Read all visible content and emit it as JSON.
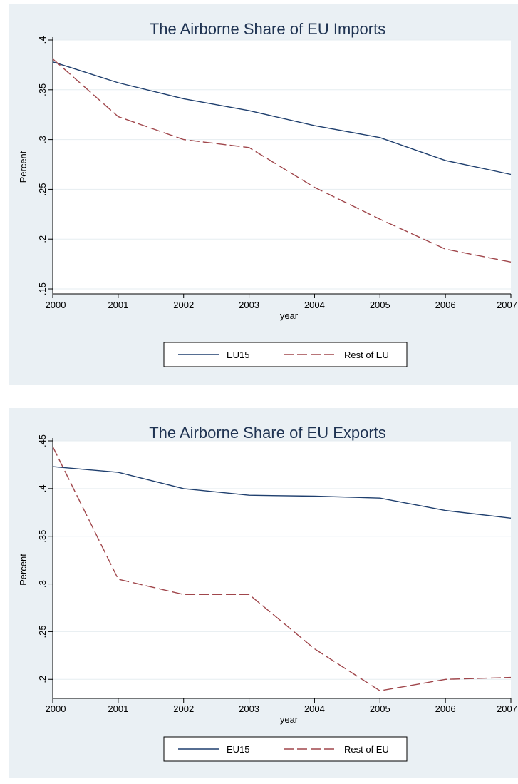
{
  "colors": {
    "panel_bg": "#eaf0f4",
    "plot_bg": "#ffffff",
    "grid": "#e6edf1",
    "title": "#1f3352",
    "eu15": "#1f3f6e",
    "rest_of_eu": "#a0464b"
  },
  "chart_data": [
    {
      "type": "line",
      "title": "The Airborne Share of EU Imports",
      "xlabel": "year",
      "ylabel": "Percent",
      "x": [
        2000,
        2001,
        2002,
        2003,
        2004,
        2005,
        2006,
        2007
      ],
      "xticks": [
        "2000",
        "2001",
        "2002",
        "2003",
        "2004",
        "2005",
        "2006",
        "2007"
      ],
      "yticks": [
        0.15,
        0.2,
        0.25,
        0.3,
        0.35,
        0.4
      ],
      "ytick_labels": [
        ".15",
        ".2",
        ".25",
        ".3",
        ".35",
        ".4"
      ],
      "ylim": [
        0.145,
        0.4
      ],
      "grid": true,
      "legend_position": "bottom",
      "series": [
        {
          "name": "EU15",
          "style": "solid",
          "values": [
            0.378,
            0.357,
            0.341,
            0.329,
            0.314,
            0.302,
            0.279,
            0.265
          ]
        },
        {
          "name": "Rest of EU",
          "style": "dashed",
          "values": [
            0.381,
            0.323,
            0.3,
            0.292,
            0.252,
            0.22,
            0.19,
            0.177
          ]
        }
      ]
    },
    {
      "type": "line",
      "title": "The Airborne Share of EU Exports",
      "xlabel": "year",
      "ylabel": "Percent",
      "x": [
        2000,
        2001,
        2002,
        2003,
        2004,
        2005,
        2006,
        2007
      ],
      "xticks": [
        "2000",
        "2001",
        "2002",
        "2003",
        "2004",
        "2005",
        "2006",
        "2007"
      ],
      "yticks": [
        0.2,
        0.25,
        0.3,
        0.35,
        0.4,
        0.45
      ],
      "ytick_labels": [
        ".2",
        ".25",
        ".3",
        ".35",
        ".4",
        ".45"
      ],
      "ylim": [
        0.18,
        0.45
      ],
      "grid": true,
      "legend_position": "bottom",
      "series": [
        {
          "name": "EU15",
          "style": "solid",
          "values": [
            0.423,
            0.417,
            0.4,
            0.393,
            0.392,
            0.39,
            0.377,
            0.369
          ]
        },
        {
          "name": "Rest of EU",
          "style": "dashed",
          "values": [
            0.444,
            0.305,
            0.289,
            0.289,
            0.232,
            0.188,
            0.2,
            0.202
          ]
        }
      ]
    }
  ]
}
